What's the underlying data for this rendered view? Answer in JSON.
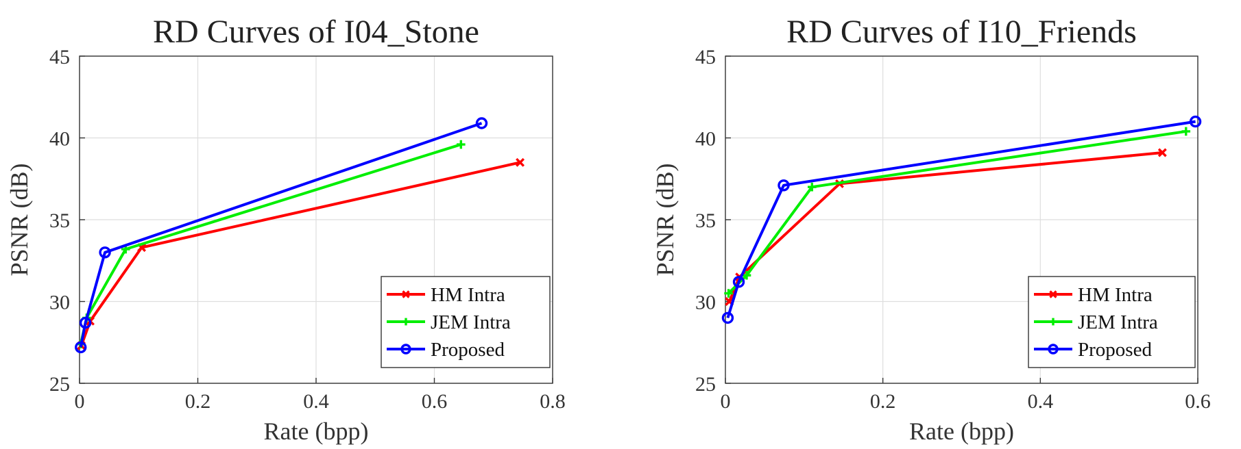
{
  "chart_data": [
    {
      "type": "line",
      "title": "RD Curves of I04_Stone",
      "xlabel": "Rate (bpp)",
      "ylabel": "PSNR (dB)",
      "xlim": [
        0,
        0.8
      ],
      "ylim": [
        25,
        45
      ],
      "xticks": [
        "0",
        "0.2",
        "0.4",
        "0.6",
        "0.8"
      ],
      "yticks": [
        "25",
        "30",
        "35",
        "40",
        "45"
      ],
      "grid": true,
      "legend_position": "bottom-right",
      "series": [
        {
          "name": "HM Intra",
          "color": "#ff0000",
          "marker": "x",
          "x": [
            0.003,
            0.018,
            0.105,
            0.745
          ],
          "y": [
            27.3,
            28.8,
            33.3,
            38.5
          ]
        },
        {
          "name": "JEM Intra",
          "color": "#00ee00",
          "marker": "+",
          "x": [
            0.002,
            0.012,
            0.078,
            0.645
          ],
          "y": [
            27.4,
            29.0,
            33.2,
            39.6
          ]
        },
        {
          "name": "Proposed",
          "color": "#0000ff",
          "marker": "o",
          "x": [
            0.002,
            0.01,
            0.043,
            0.68
          ],
          "y": [
            27.2,
            28.7,
            33.0,
            40.9
          ]
        }
      ]
    },
    {
      "type": "line",
      "title": "RD Curves of I10_Friends",
      "xlabel": "Rate (bpp)",
      "ylabel": "PSNR (dB)",
      "xlim": [
        0,
        0.6
      ],
      "ylim": [
        25,
        45
      ],
      "xticks": [
        "0",
        "0.2",
        "0.4",
        "0.6"
      ],
      "yticks": [
        "25",
        "30",
        "35",
        "40",
        "45"
      ],
      "grid": true,
      "legend_position": "bottom-right",
      "series": [
        {
          "name": "HM Intra",
          "color": "#ff0000",
          "marker": "x",
          "x": [
            0.005,
            0.018,
            0.145,
            0.555
          ],
          "y": [
            30.0,
            31.5,
            37.2,
            39.1
          ]
        },
        {
          "name": "JEM Intra",
          "color": "#00ee00",
          "marker": "+",
          "x": [
            0.004,
            0.027,
            0.11,
            0.585
          ],
          "y": [
            30.5,
            31.6,
            37.0,
            40.4
          ]
        },
        {
          "name": "Proposed",
          "color": "#0000ff",
          "marker": "o",
          "x": [
            0.003,
            0.017,
            0.074,
            0.597
          ],
          "y": [
            29.0,
            31.2,
            37.1,
            41.0
          ]
        }
      ]
    }
  ]
}
